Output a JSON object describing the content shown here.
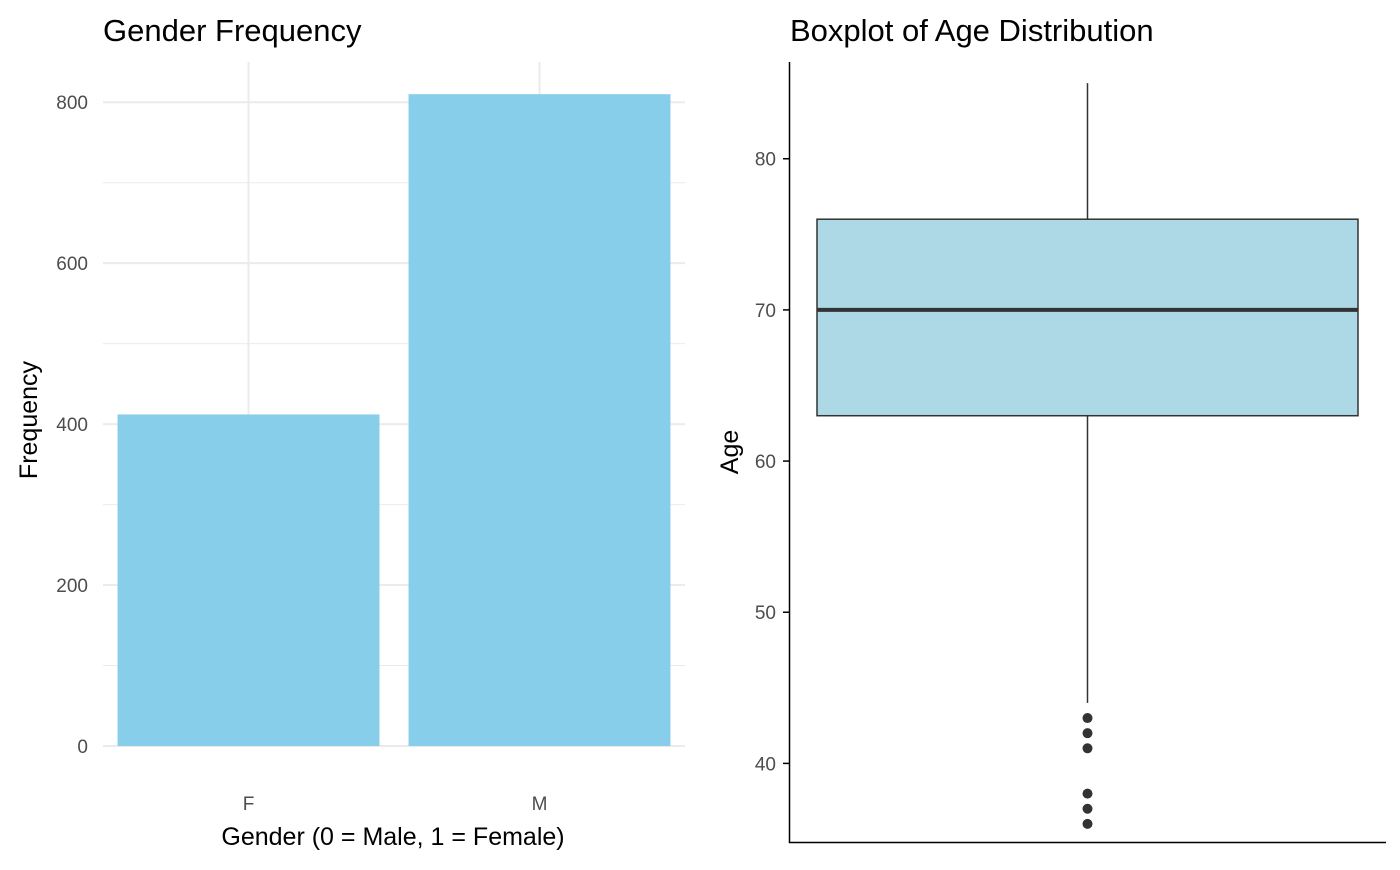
{
  "colors": {
    "bar_fill": "#87CEEB",
    "box_fill": "#ADD8E6",
    "box_line": "#333333",
    "grid": "#ebebeb",
    "axis_line": "#000000",
    "tick_text": "#4d4d4d"
  },
  "chart_data": [
    {
      "type": "bar",
      "title": "Gender Frequency",
      "xlabel": "Gender (0 = Male, 1 = Female)",
      "ylabel": "Frequency",
      "categories": [
        "F",
        "M"
      ],
      "values": [
        412,
        810
      ],
      "ylim": [
        0,
        850
      ],
      "yticks": [
        0,
        200,
        400,
        600,
        800
      ],
      "grid": true,
      "legend": "none"
    },
    {
      "type": "boxplot",
      "title": "Boxplot of Age Distribution",
      "xlabel": "",
      "ylabel": "Age",
      "ylim": [
        34.8,
        86.4
      ],
      "yticks": [
        40,
        50,
        60,
        70,
        80
      ],
      "stats": {
        "whisker_low": 44,
        "q1": 63,
        "median": 70,
        "q3": 76,
        "whisker_high": 85
      },
      "outliers": [
        43,
        42,
        41,
        38,
        37,
        36
      ],
      "grid": false,
      "legend": "none"
    }
  ]
}
